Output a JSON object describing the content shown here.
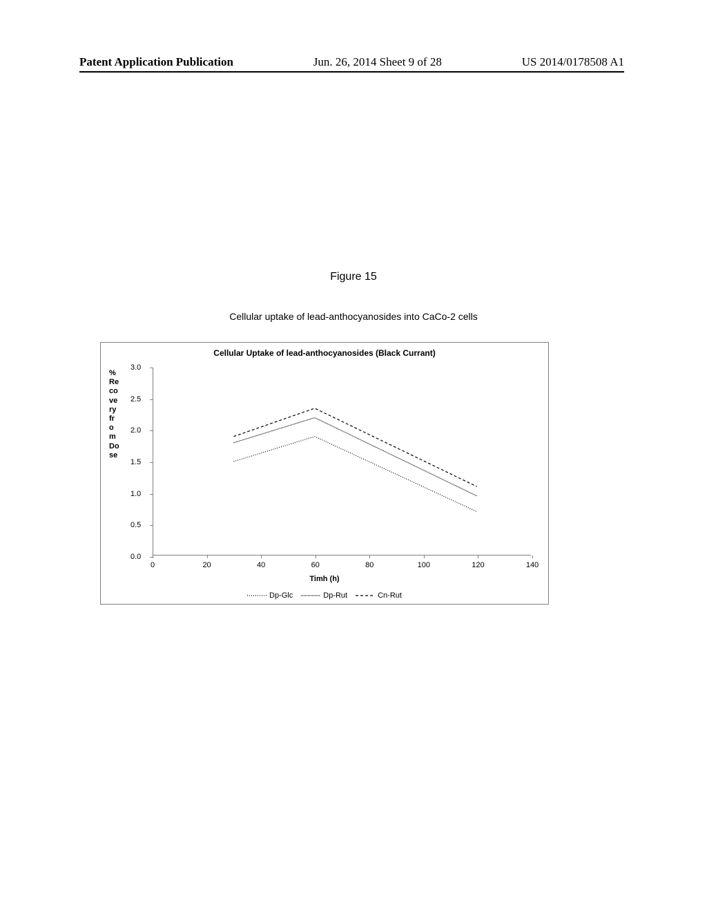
{
  "header": {
    "left": "Patent Application Publication",
    "center": "Jun. 26, 2014  Sheet 9 of 28",
    "right": "US 2014/0178508 A1"
  },
  "figure": {
    "label": "Figure 15",
    "caption": "Cellular uptake of lead-anthocyanosides into CaCo-2 cells"
  },
  "chart": {
    "type": "line",
    "title": "Cellular Uptake of lead-anthocyanosides (Black Currant)",
    "title_fontsize": 12,
    "title_fontweight": "bold",
    "x_axis": {
      "label": "Timh (h)",
      "min": 0,
      "max": 140,
      "tick_step": 20,
      "ticks": [
        0,
        20,
        40,
        60,
        80,
        100,
        120,
        140
      ]
    },
    "y_axis": {
      "label": "% Recovery from Dose",
      "label_wrapped": [
        "%",
        "Re",
        "co",
        "ve",
        "ry",
        "fr",
        "o",
        "m",
        "Do",
        "se"
      ],
      "min": 0.0,
      "max": 3.0,
      "tick_step": 0.5,
      "ticks": [
        "0.0",
        "0.5",
        "1.0",
        "1.5",
        "2.0",
        "2.5",
        "3.0"
      ]
    },
    "series": [
      {
        "name": "Dp-Glc",
        "dash": "1,2",
        "color": "#000000",
        "line_width": 1.2,
        "points": [
          {
            "x": 30,
            "y": 1.5
          },
          {
            "x": 60,
            "y": 1.9
          },
          {
            "x": 120,
            "y": 0.7
          }
        ]
      },
      {
        "name": "Dp-Rut",
        "dash": "1,1",
        "color": "#000000",
        "line_width": 1.2,
        "points": [
          {
            "x": 30,
            "y": 1.8
          },
          {
            "x": 60,
            "y": 2.2
          },
          {
            "x": 120,
            "y": 0.95
          }
        ]
      },
      {
        "name": "Cn-Rut",
        "dash": "4,3",
        "color": "#000000",
        "line_width": 1.2,
        "points": [
          {
            "x": 30,
            "y": 1.9
          },
          {
            "x": 60,
            "y": 2.35
          },
          {
            "x": 120,
            "y": 1.1
          }
        ]
      }
    ],
    "legend_labels": [
      "Dp-Glc",
      "Dp-Rut",
      "Cn-Rut"
    ],
    "background_color": "#ffffff",
    "axis_color": "#808080",
    "label_fontsize": 11,
    "tick_fontsize": 11
  }
}
